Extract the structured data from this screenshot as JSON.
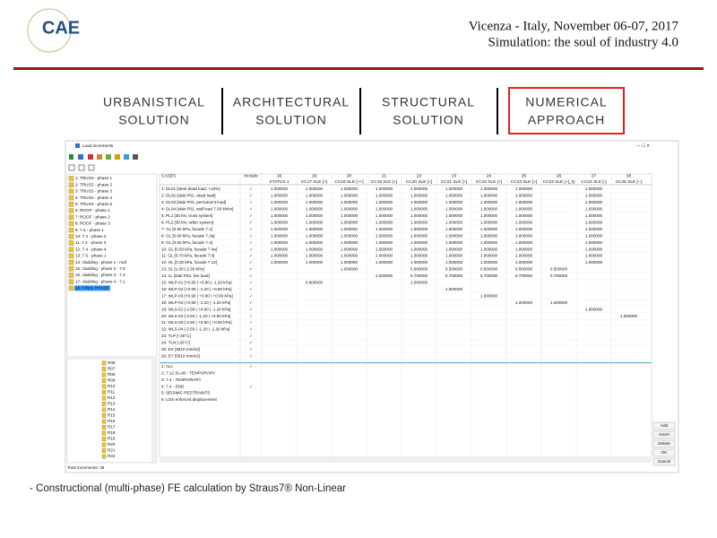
{
  "header": {
    "logo": "CAE",
    "line1": "Vicenza - Italy, November 06-07, 2017",
    "line2": "Simulation: the soul of industry 4.0"
  },
  "tabs": [
    {
      "lines": [
        "URBANISTICAL",
        "SOLUTION"
      ]
    },
    {
      "lines": [
        "ARCHITECTURAL",
        "SOLUTION"
      ]
    },
    {
      "lines": [
        "STRUCTURAL",
        "SOLUTION"
      ]
    },
    {
      "lines": [
        "NUMERICAL",
        "APPROACH"
      ]
    }
  ],
  "caption": "- Constructional (multi-phase) FE calculation by Straus7® Non-Linear",
  "window": {
    "title": "Load Increments",
    "phases": [
      "1: TRUSS - phase 1",
      "2: TRUSS - phase 2",
      "3: TRUSS - phase 3",
      "4: TRUSS - phase 4",
      "5: TRUSS - phase 5",
      "6: ROOF - phase 1",
      "7: ROOF - phase 2",
      "8: ROOF - phase 3",
      "9: 7.4 - phase 1",
      "10: 7.4 - phase 2",
      "11: 7.4 - phase 3",
      "12: 7.4 - phase 4",
      "13: 7.6 - phase 1",
      "14: cladding - phase 1 - roof",
      "15: cladding - phase 2 - 7.6",
      "16: cladding - phase 3 - 7.4",
      "17: cladding - phase 4 - 7.1",
      "18: FINAL PHASE"
    ],
    "increments": [
      "R06",
      "R07",
      "R08",
      "R09",
      "R10",
      "R11",
      "R12",
      "R13",
      "R14",
      "R15",
      "R16",
      "R17",
      "R18",
      "R19",
      "R20",
      "R21",
      "R22"
    ],
    "cases_header": "CASES",
    "include_header": "Include",
    "columns": [
      {
        "num": "16",
        "name": "STATUS 1"
      },
      {
        "num": "19",
        "name": "CC17 SLE [+]"
      },
      {
        "num": "20",
        "name": "CC18 SLE [++]"
      },
      {
        "num": "21",
        "name": "CC19 SLE [+]"
      },
      {
        "num": "22",
        "name": "CC20 SLE [+]"
      },
      {
        "num": "23",
        "name": "CC21 SLE [+]"
      },
      {
        "num": "24",
        "name": "CC22 SLE [+]"
      },
      {
        "num": "25",
        "name": "CC23 SLE [+]"
      },
      {
        "num": "26",
        "name": "CC23 SLE [+]_Q"
      },
      {
        "num": "27",
        "name": "CC24 SLE [-]"
      },
      {
        "num": "28",
        "name": "CC25 SLE [--]"
      }
    ],
    "rows": [
      {
        "case": "1: DL01 [steel dead load, +15%]",
        "include": "✓",
        "cells": [
          "1.000000",
          "1.000000",
          "1.000000",
          "1.000000",
          "1.000000",
          "1.000000",
          "1.000000",
          "1.000000",
          null,
          "1.000000",
          null
        ]
      },
      {
        "case": "2: DL02 [slab P02, dead load]",
        "include": "✓",
        "cells": [
          "1.000000",
          "1.000000",
          "1.000000",
          "1.000000",
          "1.000000",
          "1.000000",
          "1.000000",
          "1.000000",
          null,
          "1.000000",
          null
        ]
      },
      {
        "case": "3: DL03 [slab P03, permanent load]",
        "include": "✓",
        "cells": [
          "1.000000",
          "1.000000",
          "1.000000",
          "1.000000",
          "1.000000",
          "1.000000",
          "1.000000",
          "1.000000",
          null,
          "1.000000",
          null
        ]
      },
      {
        "case": "4: DL04 [slab P02, wall load 7.00 kN/m]",
        "include": "✓",
        "cells": [
          "1.000000",
          "1.000000",
          "1.000000",
          "1.000000",
          "1.000000",
          "1.000000",
          "1.000000",
          "1.000000",
          null,
          "1.000000",
          null
        ]
      },
      {
        "case": "5: PL1 [30 kN, truss system]",
        "include": "✓",
        "cells": [
          "1.000000",
          "1.000000",
          "1.000000",
          "1.000000",
          "1.000000",
          "1.000000",
          "1.000000",
          "1.000000",
          null,
          "1.000000",
          null
        ]
      },
      {
        "case": "6: PL2 [30 kN, rafter system]",
        "include": "✓",
        "cells": [
          "1.000000",
          "1.000000",
          "1.000000",
          "1.000000",
          "1.000000",
          "1.000000",
          "1.000000",
          "1.000000",
          null,
          "1.000000",
          null
        ]
      },
      {
        "case": "7: GL [0.60 kPa, facade 7.1]",
        "include": "✓",
        "cells": [
          "1.000000",
          "1.000000",
          "1.000000",
          "1.000000",
          "1.000000",
          "1.000000",
          "1.000000",
          "1.000000",
          null,
          "1.000000",
          null
        ]
      },
      {
        "case": "8: GL [0.60 kPa, facade 7.3a]",
        "include": "✓",
        "cells": [
          "1.000000",
          "1.000000",
          "1.000000",
          "1.000000",
          "1.000000",
          "1.000000",
          "1.000000",
          "1.000000",
          null,
          "1.000000",
          null
        ]
      },
      {
        "case": "9: GL [0.50 kPa, facade 7.4]",
        "include": "✓",
        "cells": [
          "1.000000",
          "1.000000",
          "1.000000",
          "1.000000",
          "1.000000",
          "1.000000",
          "1.000000",
          "1.000000",
          null,
          "1.000000",
          null
        ]
      },
      {
        "case": "10: GL [0.50 kPa, facade 7.4a]",
        "include": "✓",
        "cells": [
          "1.000000",
          "1.000000",
          "1.000000",
          "1.000000",
          "1.000000",
          "1.000000",
          "1.000000",
          "1.000000",
          null,
          "1.000000",
          null
        ]
      },
      {
        "case": "11: GL [0.70 kPa, facade 7.6]",
        "include": "✓",
        "cells": [
          "1.000000",
          "1.000000",
          "1.000000",
          "1.000000",
          "1.000000",
          "1.000000",
          "1.000000",
          "1.000000",
          null,
          "1.000000",
          null
        ]
      },
      {
        "case": "12: GL [0.30 kPa, facade 7.12]",
        "include": "✓",
        "cells": [
          "1.000000",
          "1.000000",
          "1.000000",
          "1.000000",
          "1.000000",
          "1.000000",
          "1.000000",
          "1.000000",
          null,
          "1.000000",
          null
        ]
      },
      {
        "case": "13: SL [1.00 | 2.30 kPa]",
        "include": "✓",
        "cells": [
          null,
          null,
          "1.000000",
          null,
          "0.500000",
          "0.500000",
          "0.500000",
          "0.500000",
          "0.500000",
          null,
          null
        ]
      },
      {
        "case": "14: LL [slab P02, live load]",
        "include": "✓",
        "cells": [
          null,
          null,
          null,
          "1.000000",
          "0.700000",
          "0.700000",
          "0.700000",
          "0.700000",
          "0.700000",
          null,
          null
        ]
      },
      {
        "case": "15: WLP-01 [+0.90 | +0.90 | -1.20 kPa]",
        "include": "✓",
        "cells": [
          null,
          "0.600000",
          null,
          null,
          "1.000000",
          null,
          null,
          null,
          null,
          null,
          null
        ]
      },
      {
        "case": "16: WLP-02 [+0.90 | -1.20 | +0.90 kPa]",
        "include": "✓",
        "cells": [
          null,
          null,
          null,
          null,
          null,
          "1.000000",
          null,
          null,
          null,
          null,
          null
        ]
      },
      {
        "case": "17: WLP-03 [+0.90 | +0.90 | +0.90 kPa]",
        "include": "✓",
        "cells": [
          null,
          null,
          null,
          null,
          null,
          null,
          "1.000000",
          null,
          null,
          null,
          null
        ]
      },
      {
        "case": "18: WLP-04 [+0.90 | -1.20 | -1.20 kPa]",
        "include": "✓",
        "cells": [
          null,
          null,
          null,
          null,
          null,
          null,
          null,
          "1.000000",
          "1.000000",
          null,
          null
        ]
      },
      {
        "case": "19: WLS-01 [-2.50 | +0.90 | -1.20 kPa]",
        "include": "✓",
        "cells": [
          null,
          null,
          null,
          null,
          null,
          null,
          null,
          null,
          null,
          "1.000000",
          null
        ]
      },
      {
        "case": "20: WLS-02 [-2.50 | -1.20 | +0.90 kPa]",
        "include": "✓",
        "cells": [
          null,
          null,
          null,
          null,
          null,
          null,
          null,
          null,
          null,
          null,
          "1.000000"
        ]
      },
      {
        "case": "21: WLS-03 [-2.50 | +0.90 | +0.90 kPa]",
        "include": "✓",
        "cells": [
          null,
          null,
          null,
          null,
          null,
          null,
          null,
          null,
          null,
          null,
          null
        ]
      },
      {
        "case": "22: WLS-04 [-2.50 | -1.20 | -1.20 kPa]",
        "include": "✓",
        "cells": [
          null,
          null,
          null,
          null,
          null,
          null,
          null,
          null,
          null,
          null,
          null
        ]
      },
      {
        "case": "23: TLP [+30°C]",
        "include": "✓",
        "cells": [
          null,
          null,
          null,
          null,
          null,
          null,
          null,
          null,
          null,
          null,
          null
        ]
      },
      {
        "case": "24: TLN [-25°C]",
        "include": "✓",
        "cells": [
          null,
          null,
          null,
          null,
          null,
          null,
          null,
          null,
          null,
          null,
          null
        ]
      },
      {
        "case": "25: EX [5810 mm/s2]",
        "include": "✓",
        "cells": [
          null,
          null,
          null,
          null,
          null,
          null,
          null,
          null,
          null,
          null,
          null
        ]
      },
      {
        "case": "26: EY [5810 mm/s2]",
        "include": "✓",
        "cells": [
          null,
          null,
          null,
          null,
          null,
          null,
          null,
          null,
          null,
          null,
          null
        ]
      }
    ],
    "groups": [
      {
        "case": "1: ALL",
        "include": "✓"
      },
      {
        "case": "2: 7.12 SLAB - TEMPORARY",
        "include": null
      },
      {
        "case": "3: 7.4 - TEMPORARY",
        "include": null
      },
      {
        "case": "4: 7.4 - END",
        "include": "✓"
      },
      {
        "case": "5: SEISMIC RESTRAINTS",
        "include": null
      },
      {
        "case": "6: LOS enforced displacement",
        "include": null
      }
    ],
    "buttons": [
      "Add",
      "Insert",
      "Delete",
      "OK",
      "Cancel"
    ],
    "status": "Total Increments: 48"
  }
}
